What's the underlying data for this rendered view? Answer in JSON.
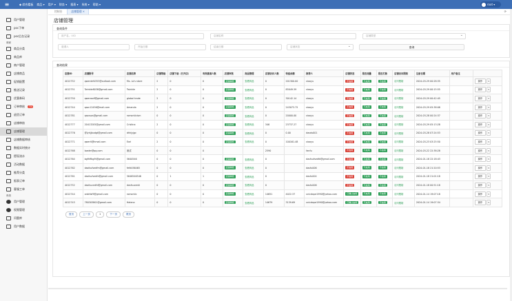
{
  "topbar": {
    "nav": [
      "◆ 综合看板",
      "商品 ▾",
      "用户 ▾",
      "财务 ▾",
      "报表 ▾",
      "系统 ▾",
      "帮助 ▾"
    ],
    "user": "root ▾"
  },
  "sidebar": {
    "items": [
      {
        "label": "用户管理",
        "icon": "document-icon",
        "group": ""
      },
      {
        "label": "poc下单",
        "icon": "document-icon",
        "group": ""
      },
      {
        "label": "poc后台记录",
        "icon": "document-icon",
        "group": "商家"
      },
      {
        "label": "商品分类",
        "icon": "monitor-icon",
        "group": ""
      },
      {
        "label": "商品库",
        "icon": "document-icon",
        "group": ""
      },
      {
        "label": "商户管理",
        "icon": "document-icon",
        "group": ""
      },
      {
        "label": "店铺商品",
        "icon": "document-icon",
        "group": ""
      },
      {
        "label": "促销配置",
        "icon": "document-icon",
        "group": ""
      },
      {
        "label": "推送记录",
        "icon": "document-icon",
        "group": ""
      },
      {
        "label": "优惠券码",
        "icon": "grid-icon",
        "group": ""
      },
      {
        "label": "订单审核",
        "icon": "italic-icon",
        "badge": "72",
        "group": ""
      },
      {
        "label": "退货订单",
        "icon": "italic-icon",
        "group": ""
      },
      {
        "label": "店铺审核",
        "icon": "card-icon",
        "group": ""
      },
      {
        "label": "店铺管理",
        "icon": "card-icon",
        "active": true,
        "group": ""
      },
      {
        "label": "店铺数据审核",
        "icon": "card-icon",
        "group": ""
      },
      {
        "label": "数据实时统计",
        "icon": "card-icon",
        "group": ""
      },
      {
        "label": "提现流水",
        "icon": "card-icon",
        "group": ""
      },
      {
        "label": "活动数据",
        "icon": "card-icon",
        "group": ""
      },
      {
        "label": "推荐分类",
        "icon": "card-icon",
        "group": ""
      },
      {
        "label": "报表订单",
        "icon": "card-icon",
        "group": ""
      },
      {
        "label": "客服工单",
        "icon": "card-icon",
        "group": "系统"
      },
      {
        "label": "用户管理",
        "icon": "pie-icon",
        "group": ""
      },
      {
        "label": "权限管理",
        "icon": "pie-icon",
        "group": ""
      },
      {
        "label": "问题库",
        "icon": "bars-icon",
        "group": ""
      },
      {
        "label": "用户数据",
        "icon": "list-icon",
        "group": ""
      }
    ]
  },
  "tabs": [
    {
      "label": "控制台",
      "active": false
    },
    {
      "label": "店铺管理 ✕",
      "active": true
    }
  ],
  "page_title": "店铺管理",
  "filters": {
    "title": "查询条件",
    "f1": "用户名、UID",
    "f2": "店铺名称",
    "f3": "店铺类型",
    "f4": "邀请人",
    "f5": "开始日期",
    "f6": "结束日期",
    "f7": "店铺状态",
    "search": "查询"
  },
  "table": {
    "title": "查询结果",
    "headers": [
      "店铺ID",
      "店铺账号",
      "店铺名称",
      "店铺等级",
      "店铺下级（已开店）",
      "有效邀请人数",
      "店铺审核",
      "商品管理",
      "店铺访问人数",
      "待结余额",
      "推荐人",
      "店铺状态",
      "是否流量",
      "是否打款",
      "店铺访问限制",
      "注册日期",
      "用户备注",
      ""
    ],
    "rows": [
      [
        "4012752",
        "qwerdef4353@outlook.com",
        "Ms. Lo's store",
        "2",
        "0",
        "0",
        "店铺审核",
        "查看商品",
        "0",
        "201300.00",
        "xiaoyu",
        "不启用",
        "不启用",
        "不启用",
        "访问限制",
        "2024-03-29 00:28:35",
        ""
      ],
      [
        "4012751",
        "Twinkle8038@gmail.com",
        "Twinkle",
        "2",
        "0",
        "0",
        "店铺审核",
        "查看商品",
        "0",
        "85049.59",
        "xiaoyu",
        "不启用",
        "不启用",
        "不启用",
        "访问限制",
        "2024-03-29 00:15:55",
        ""
      ],
      [
        "4012750",
        "qwerasdf@gmail.com",
        "global trade",
        "2",
        "0",
        "0",
        "店铺审核",
        "查看商品",
        "0",
        "30142.14",
        "xiaoyu",
        "不启用",
        "不启用",
        "不启用",
        "访问限制",
        "2024-03-29 00:42:45",
        ""
      ],
      [
        "4012744",
        "qazc12456@mail.com",
        "Amanda",
        "2",
        "0",
        "0",
        "店铺审核",
        "查看商品",
        "0",
        "243073.75",
        "xiaoyu",
        "不启用",
        "不启用",
        "不启用",
        "访问限制",
        "2024-03-29 05:38:08",
        ""
      ],
      [
        "4012781",
        "qazxsas@gmail.com",
        "romanticism",
        "0",
        "0",
        "0",
        "店铺审核",
        "查看商品",
        "0",
        "20000.00",
        "xiaoyu",
        "不启用",
        "不启用",
        "不启用",
        "访问限制",
        "2024-03-28 00:24:37",
        ""
      ],
      [
        "4012777",
        "20413205@gmail.com",
        "Cristina",
        "2",
        "0",
        "0",
        "店铺审核",
        "查看商品",
        "346",
        "23737.27",
        "xiaoyu",
        "不启用",
        "不启用",
        "不启用",
        "访问限制",
        "2024-03-29 05:13:28",
        ""
      ],
      [
        "4012776",
        "@lyhjjbudgt@gmail.com",
        "dhhjyjgc",
        "0",
        "0",
        "0",
        "店铺审核",
        "查看商品",
        "0",
        "0.00",
        "dasdu001",
        "不启用",
        "不启用",
        "不启用",
        "访问限制",
        "2024-03-28 07:24:53",
        ""
      ],
      [
        "4012771",
        "qwerit@hmail.com",
        "Earl",
        "2",
        "0",
        "0",
        "店铺审核",
        "查看商品",
        "0",
        "100161.48",
        "xiaoyu",
        "不启用",
        "不启用",
        "不启用",
        "访问限制",
        "2024-03-23 03:25:50",
        ""
      ],
      [
        "4012768",
        "loader@qq.com",
        "测试",
        "0",
        "0",
        "0",
        "",
        "",
        "2590",
        "",
        "fanfu",
        "不启用",
        "不启用",
        "不启用",
        "访问限制",
        "2024-03-22 22:38:28",
        ""
      ],
      [
        "4012764",
        "bgfhffbgfh@gmail.com",
        "5640546",
        "0",
        "0",
        "0",
        "店铺审核",
        "查看商品",
        "0",
        "",
        "dasfsufsedfd@gmail.com",
        "不启用",
        "不启用",
        "不启用",
        "访问限制",
        "2024-01-18 22:18:43",
        ""
      ],
      [
        "4012762",
        "dasfsufsedfm@gmail.com",
        "fefd456465",
        "0",
        "0",
        "0",
        "店铺审核",
        "查看商品",
        "0",
        "",
        "dasfu006",
        "不启用",
        "不启用",
        "不启用",
        "访问限制",
        "2024-01-18 21:20:53",
        ""
      ],
      [
        "4012761",
        "dasfsufsedfd@gmail.com",
        "5646546546",
        "0",
        "1",
        "1",
        "店铺审核",
        "查看商品",
        "0",
        "",
        "dasfu004",
        "不启用",
        "不启用",
        "不启用",
        "访问限制",
        "2024-01-18 21:01:18",
        ""
      ],
      [
        "4012752",
        "dasfsucedfd@gmail.com",
        "dasfsucedd",
        "0",
        "0",
        "0",
        "店铺审核",
        "查看商品",
        "0",
        "",
        "dasfu006",
        "不启用",
        "不启用",
        "不启用",
        "访问限制",
        "2024-01-18 00:51:18",
        ""
      ],
      [
        "4012744",
        "xdsfdsf9@gmail.com",
        "romantic",
        "0",
        "0",
        "0",
        "店铺审核",
        "查看商品",
        "14651",
        "4022.37",
        "unicdope1990@yahoo.com",
        "已确认启用",
        "不启用",
        "不启用",
        "访问限制",
        "2024-01-14 19:07:18",
        ""
      ],
      [
        "4012743",
        "780303801@gmail.com",
        "Helena",
        "0",
        "0",
        "0",
        "店铺审核",
        "查看商品",
        "14679",
        "3139.69",
        "unicdope1990@yahoo.com",
        "已确认启用",
        "不启用",
        "不启用",
        "访问限制",
        "2024-01-14 19:07:34",
        ""
      ]
    ],
    "op_label": "操作",
    "op_caret": "▾"
  },
  "pager": [
    "首页",
    "上一页",
    "1",
    "下一页",
    "尾页"
  ],
  "colors": {
    "primary": "#3d6fb6",
    "success": "#2e9e57",
    "danger": "#d9463c"
  }
}
